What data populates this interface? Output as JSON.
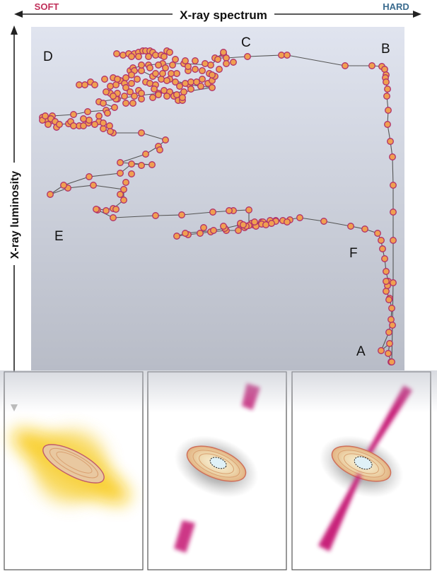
{
  "header": {
    "soft_label": "SOFT",
    "title": "X-ray spectrum",
    "hard_label": "HARD"
  },
  "y_axis": {
    "label": "X-ray luminosity"
  },
  "point_labels": {
    "A": "A",
    "B": "B",
    "C": "C",
    "D": "D",
    "E": "E",
    "F": "F"
  },
  "colors": {
    "soft": "#c0305a",
    "hard": "#3a6b8e",
    "point_fill": "#f0a050",
    "point_stroke": "#b0306a",
    "track_line": "#555555",
    "plot_bg_top": "#dfe3ee",
    "plot_bg_bottom": "#b9bdc8",
    "jet": "#c8207a",
    "corona": "#f5c400"
  },
  "panels": [
    {
      "name": "corona-panel",
      "jets": "none"
    },
    {
      "name": "disc-panel",
      "jets": "blobs"
    },
    {
      "name": "jet-panel",
      "jets": "continuous"
    }
  ]
}
